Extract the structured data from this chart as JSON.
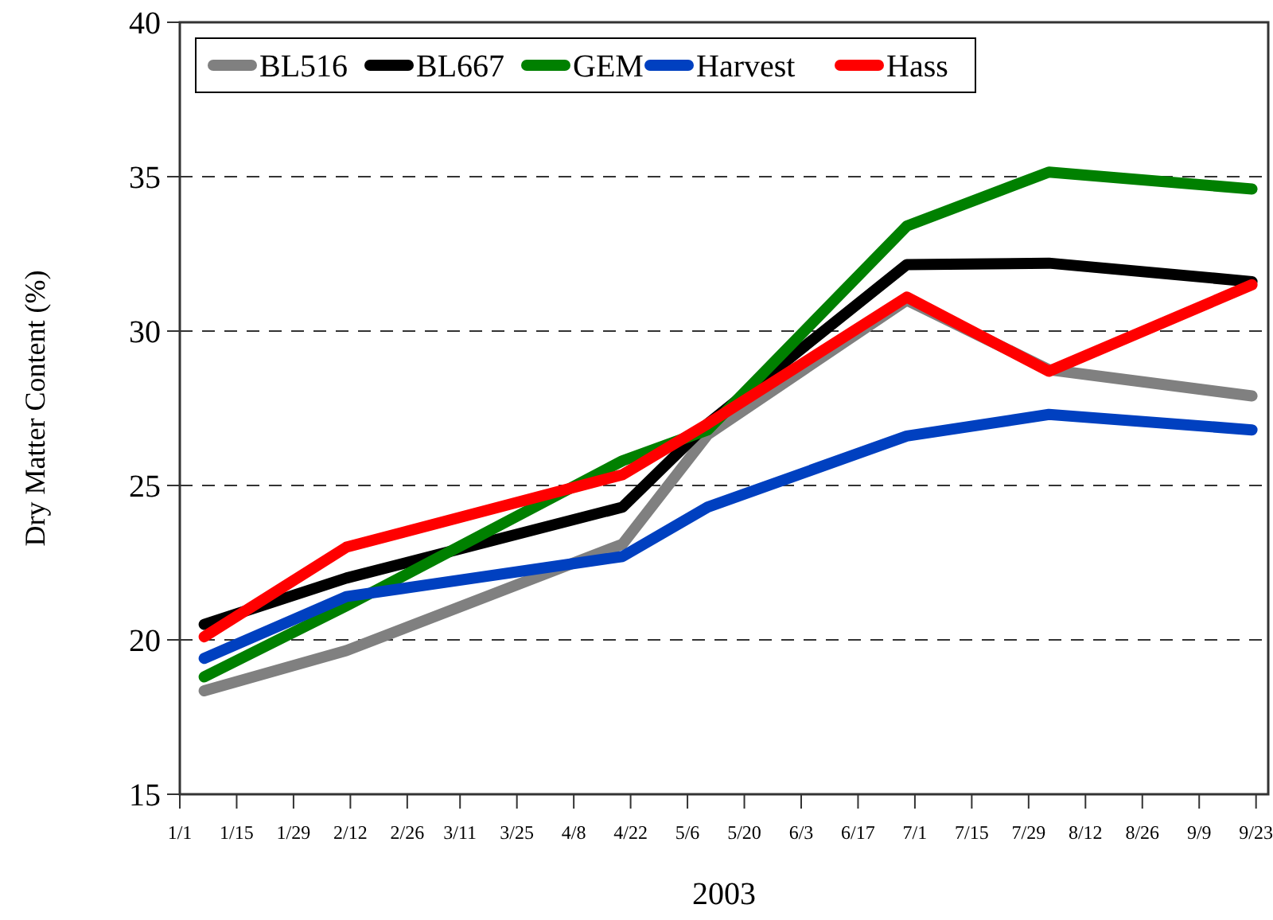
{
  "chart_data": {
    "type": "line",
    "xlabel": "2003",
    "ylabel": "Dry Matter Content (%)",
    "x": [
      "2003-01-07",
      "2003-02-11",
      "2003-04-20",
      "2003-05-11",
      "2003-06-29",
      "2003-08-03",
      "2003-09-22"
    ],
    "series": [
      {
        "name": "BL516",
        "color": "#808080",
        "values": [
          18.35,
          19.65,
          23.1,
          26.65,
          31.0,
          28.75,
          27.9
        ]
      },
      {
        "name": "BL667",
        "color": "#000000",
        "values": [
          20.5,
          22.0,
          24.3,
          27.0,
          32.15,
          32.2,
          31.6
        ]
      },
      {
        "name": "GEM",
        "color": "#008000",
        "values": [
          18.8,
          21.1,
          25.8,
          26.8,
          33.4,
          35.15,
          34.6
        ]
      },
      {
        "name": "Harvest",
        "color": "#0040c0",
        "values": [
          19.4,
          21.4,
          22.7,
          24.3,
          26.6,
          27.3,
          26.8
        ]
      },
      {
        "name": "Hass",
        "color": "#ff0000",
        "values": [
          20.1,
          23.0,
          25.35,
          27.0,
          31.1,
          28.7,
          31.5
        ]
      }
    ],
    "xlim": [
      "2003-01-01",
      "2003-09-26"
    ],
    "xticks": [
      {
        "value": "2003-01-01",
        "label": "1/1"
      },
      {
        "value": "2003-01-15",
        "label": "1/15"
      },
      {
        "value": "2003-01-29",
        "label": "1/29"
      },
      {
        "value": "2003-02-12",
        "label": "2/12"
      },
      {
        "value": "2003-02-26",
        "label": "2/26"
      },
      {
        "value": "2003-03-11",
        "label": "3/11"
      },
      {
        "value": "2003-03-25",
        "label": "3/25"
      },
      {
        "value": "2003-04-08",
        "label": "4/8"
      },
      {
        "value": "2003-04-22",
        "label": "4/22"
      },
      {
        "value": "2003-05-06",
        "label": "5/6"
      },
      {
        "value": "2003-05-20",
        "label": "5/20"
      },
      {
        "value": "2003-06-03",
        "label": "6/3"
      },
      {
        "value": "2003-06-17",
        "label": "6/17"
      },
      {
        "value": "2003-07-01",
        "label": "7/1"
      },
      {
        "value": "2003-07-15",
        "label": "7/15"
      },
      {
        "value": "2003-07-29",
        "label": "7/29"
      },
      {
        "value": "2003-08-12",
        "label": "8/12"
      },
      {
        "value": "2003-08-26",
        "label": "8/26"
      },
      {
        "value": "2003-09-09",
        "label": "9/9"
      },
      {
        "value": "2003-09-23",
        "label": "9/23"
      }
    ],
    "ylim": [
      15,
      40
    ],
    "yticks": [
      15,
      20,
      25,
      30,
      35,
      40
    ],
    "grid": "y",
    "legend": "top left",
    "marker": "none",
    "line_style": "solid"
  }
}
